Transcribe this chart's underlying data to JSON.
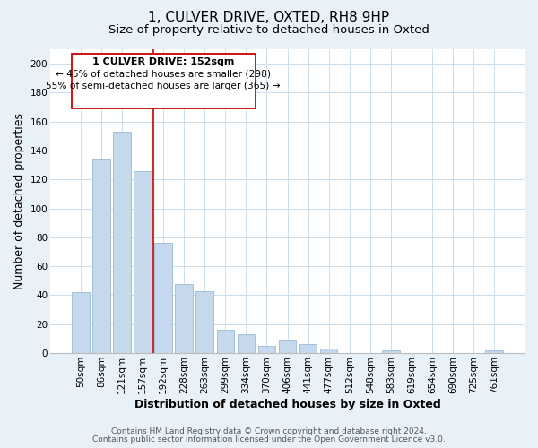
{
  "title": "1, CULVER DRIVE, OXTED, RH8 9HP",
  "subtitle": "Size of property relative to detached houses in Oxted",
  "xlabel": "Distribution of detached houses by size in Oxted",
  "ylabel": "Number of detached properties",
  "bar_labels": [
    "50sqm",
    "86sqm",
    "121sqm",
    "157sqm",
    "192sqm",
    "228sqm",
    "263sqm",
    "299sqm",
    "334sqm",
    "370sqm",
    "406sqm",
    "441sqm",
    "477sqm",
    "512sqm",
    "548sqm",
    "583sqm",
    "619sqm",
    "654sqm",
    "690sqm",
    "725sqm",
    "761sqm"
  ],
  "bar_values": [
    42,
    134,
    153,
    126,
    76,
    48,
    43,
    16,
    13,
    5,
    9,
    6,
    3,
    0,
    0,
    2,
    0,
    0,
    0,
    0,
    2
  ],
  "bar_color": "#c6d9ec",
  "bar_edge_color": "#9ab8d4",
  "highlight_line_color": "#cc0000",
  "ylim": [
    0,
    210
  ],
  "yticks": [
    0,
    20,
    40,
    60,
    80,
    100,
    120,
    140,
    160,
    180,
    200
  ],
  "annotation_title": "1 CULVER DRIVE: 152sqm",
  "annotation_line1": "← 45% of detached houses are smaller (298)",
  "annotation_line2": "55% of semi-detached houses are larger (365) →",
  "annotation_box_color": "#ffffff",
  "annotation_box_edge": "#cc0000",
  "footer1": "Contains HM Land Registry data © Crown copyright and database right 2024.",
  "footer2": "Contains public sector information licensed under the Open Government Licence v3.0.",
  "title_fontsize": 11,
  "subtitle_fontsize": 9.5,
  "axis_label_fontsize": 9,
  "tick_fontsize": 7.5,
  "annotation_fontsize": 8,
  "footer_fontsize": 6.5,
  "grid_color": "#ccdded",
  "plot_bg_color": "#ffffff",
  "fig_bg_color": "#e8f0f8"
}
